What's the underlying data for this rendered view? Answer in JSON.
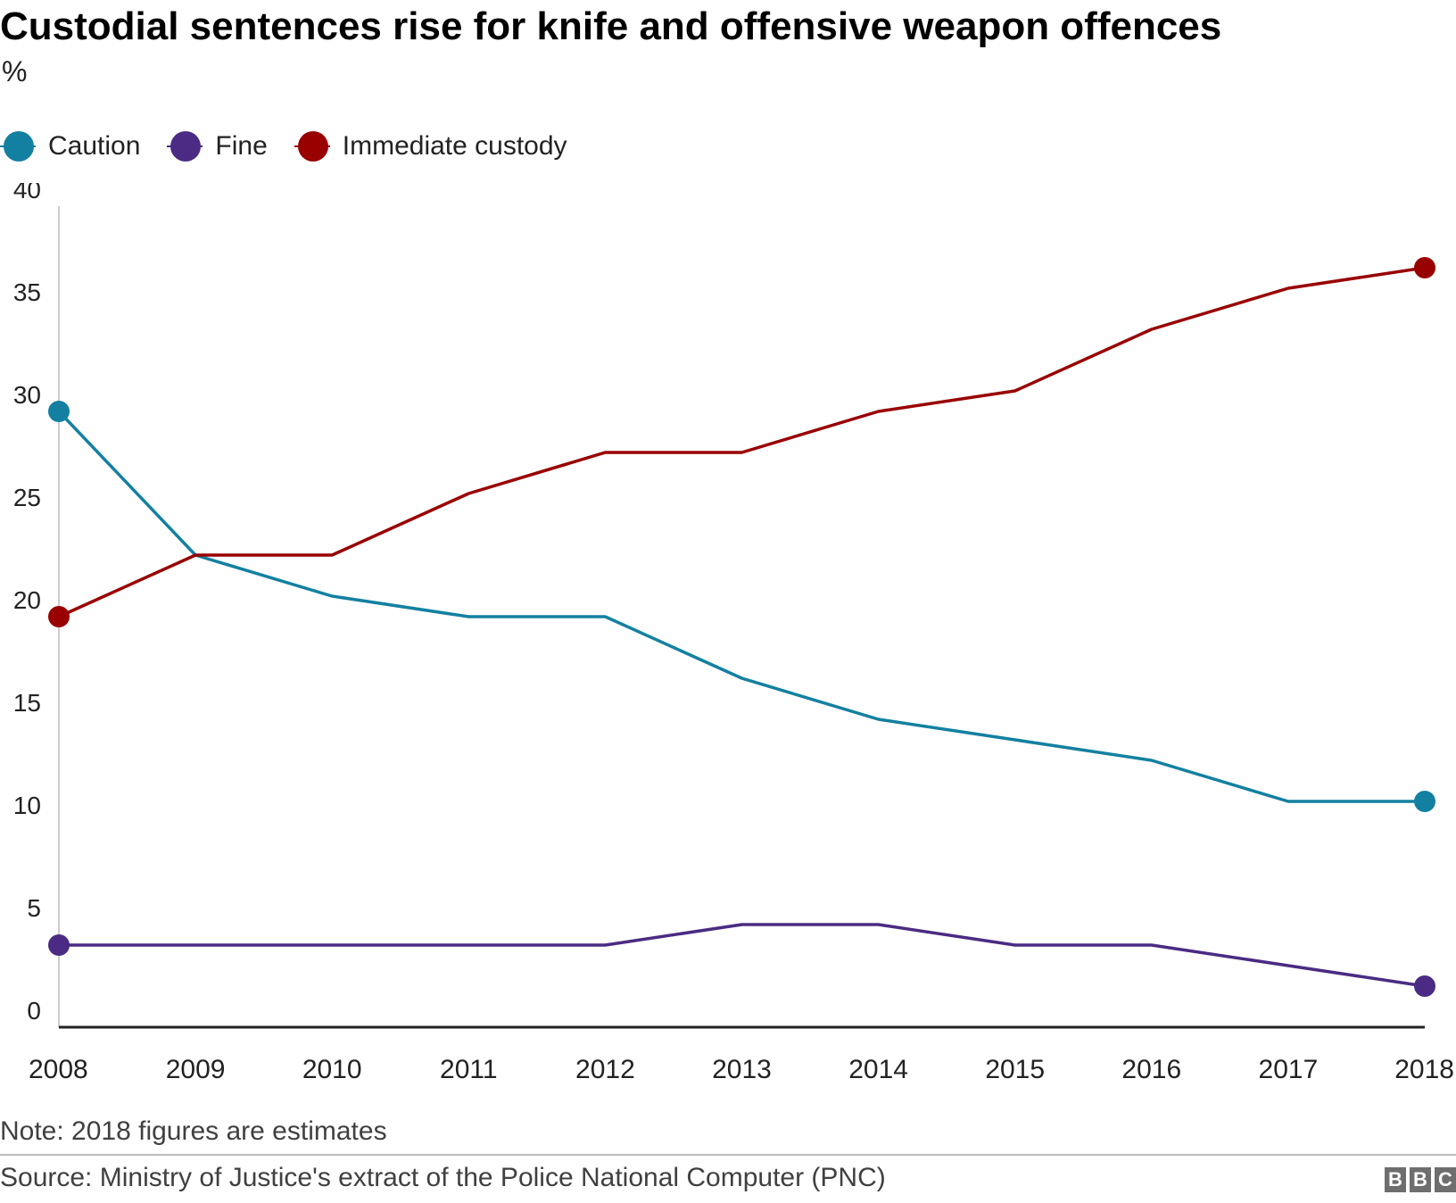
{
  "title": "Custodial sentences rise for knife and offensive weapon offences",
  "subtitle": "%",
  "legend": [
    {
      "label": "Caution",
      "color": "#1380a1"
    },
    {
      "label": "Fine",
      "color": "#4b2b83"
    },
    {
      "label": "Immediate custody",
      "color": "#990000"
    }
  ],
  "note": "Note: 2018 figures are estimates",
  "source": "Source: Ministry of Justice's extract of the Police National Computer (PNC)",
  "logo": {
    "letters": [
      "B",
      "B",
      "C"
    ]
  },
  "chart_data": {
    "type": "line",
    "title": "Custodial sentences rise for knife and offensive weapon offences",
    "ylabel": "%",
    "xlabel": "",
    "x": [
      "2008",
      "2009",
      "2010",
      "2011",
      "2012",
      "2013",
      "2014",
      "2015",
      "2016",
      "2017",
      "2018"
    ],
    "ylim": [
      0,
      40
    ],
    "yticks": [
      0,
      5,
      10,
      15,
      20,
      25,
      30,
      35,
      40
    ],
    "grid": false,
    "legend_position": "top-left",
    "series": [
      {
        "name": "Caution",
        "color": "#1380a1",
        "values": [
          30,
          23,
          21,
          20,
          20,
          17,
          15,
          14,
          13,
          11,
          11
        ]
      },
      {
        "name": "Fine",
        "color": "#4b2b83",
        "values": [
          4,
          4,
          4,
          4,
          4,
          5,
          5,
          4,
          4,
          3,
          2
        ]
      },
      {
        "name": "Immediate custody",
        "color": "#990000",
        "values": [
          20,
          23,
          23,
          26,
          28,
          28,
          30,
          31,
          34,
          36,
          37
        ]
      }
    ]
  }
}
